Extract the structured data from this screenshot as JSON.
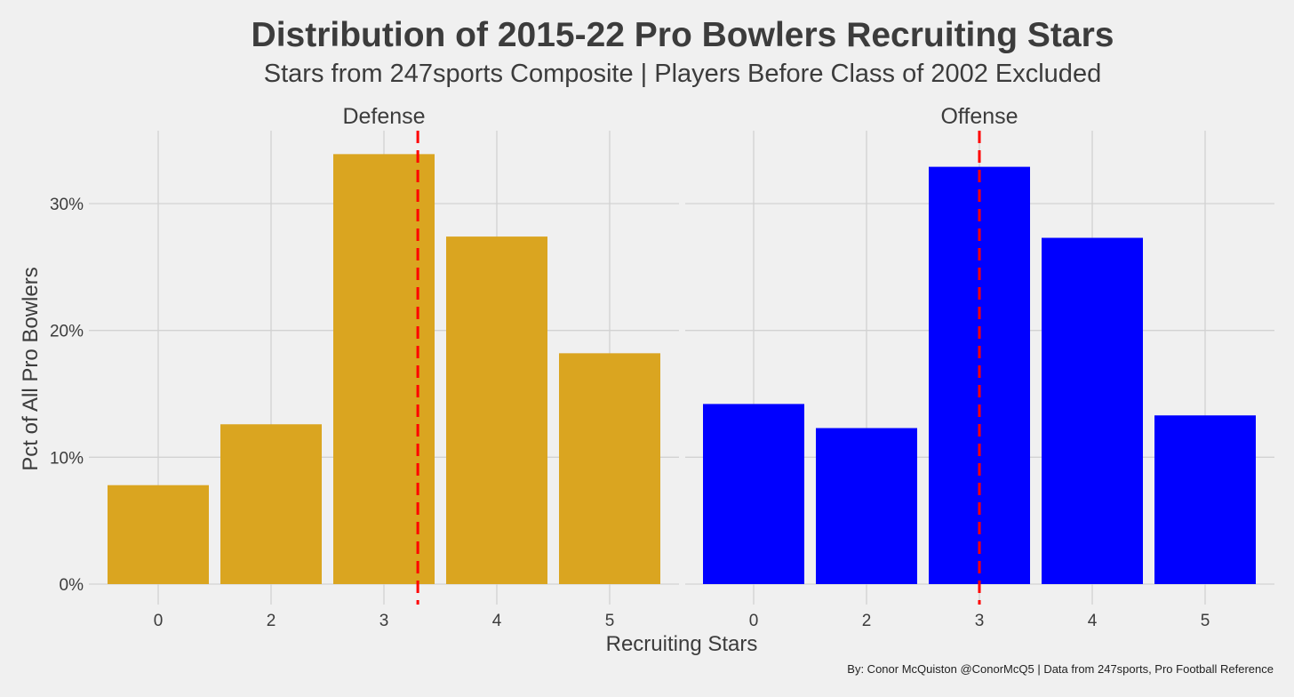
{
  "chart_data": {
    "type": "bar",
    "title": "Distribution of 2015-22 Pro Bowlers Recruiting Stars",
    "subtitle": "Stars from 247sports Composite | Players Before Class of 2002 Excluded",
    "xlabel": "Recruiting Stars",
    "ylabel": "Pct of All Pro Bowlers",
    "caption": "By: Conor McQuiston @ConorMcQ5 | Data from 247sports, Pro Football Reference",
    "categories": [
      "0",
      "2",
      "3",
      "4",
      "5"
    ],
    "ylim": [
      0,
      35
    ],
    "yticks": [
      0,
      10,
      20,
      30
    ],
    "ytick_labels": [
      "0%",
      "10%",
      "20%",
      "30%"
    ],
    "grid": true,
    "reference_line": {
      "style": "dashed",
      "color": "#ff0000"
    },
    "panels": [
      {
        "name": "Defense",
        "color": "#daa520",
        "values": [
          7.8,
          12.6,
          33.9,
          27.4,
          18.2
        ],
        "mean_line_x": 3.3
      },
      {
        "name": "Offense",
        "color": "#0000ff",
        "values": [
          14.2,
          12.3,
          32.9,
          27.3,
          13.3
        ],
        "mean_line_x": 3.0
      }
    ]
  }
}
